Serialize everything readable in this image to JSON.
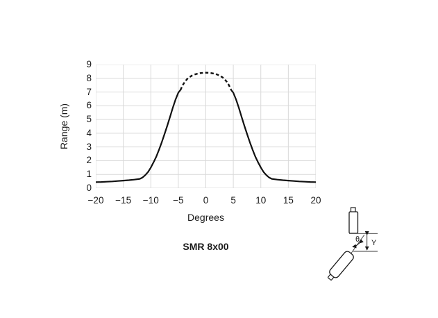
{
  "chart_data": {
    "type": "line",
    "title": "SMR 8x00",
    "xlabel": "Degrees",
    "ylabel": "Range (m)",
    "xlim": [
      -20,
      20
    ],
    "ylim": [
      0,
      9
    ],
    "xticks": [
      -20,
      -15,
      -10,
      -5,
      0,
      5,
      10,
      15,
      20
    ],
    "yticks": [
      0,
      1,
      2,
      3,
      4,
      5,
      6,
      7,
      8,
      9
    ],
    "grid": true,
    "legend": false,
    "line_color": "#111111",
    "grid_color": "#d9d9d9",
    "series": [
      {
        "name": "range-curve-left-solid",
        "style": "solid",
        "points": [
          [
            -20,
            0.44
          ],
          [
            -19,
            0.45
          ],
          [
            -18,
            0.47
          ],
          [
            -17,
            0.49
          ],
          [
            -16,
            0.52
          ],
          [
            -15,
            0.55
          ],
          [
            -14,
            0.58
          ],
          [
            -13,
            0.62
          ],
          [
            -12,
            0.68
          ],
          [
            -11.5,
            0.78
          ],
          [
            -11,
            0.95
          ],
          [
            -10.5,
            1.18
          ],
          [
            -10,
            1.5
          ],
          [
            -9.5,
            1.88
          ],
          [
            -9,
            2.3
          ],
          [
            -8.5,
            2.8
          ],
          [
            -8,
            3.35
          ],
          [
            -7.5,
            3.95
          ],
          [
            -7,
            4.55
          ],
          [
            -6.5,
            5.2
          ],
          [
            -6,
            5.85
          ],
          [
            -5.5,
            6.45
          ],
          [
            -5,
            6.95
          ],
          [
            -4.6,
            7.15
          ]
        ]
      },
      {
        "name": "range-curve-peak-dashed",
        "style": "dashed",
        "points": [
          [
            -4.6,
            7.15
          ],
          [
            -4.2,
            7.5
          ],
          [
            -3.8,
            7.75
          ],
          [
            -3.4,
            7.95
          ],
          [
            -3,
            8.08
          ],
          [
            -2.5,
            8.2
          ],
          [
            -2,
            8.28
          ],
          [
            -1.5,
            8.34
          ],
          [
            -1,
            8.38
          ],
          [
            -0.5,
            8.4
          ],
          [
            0,
            8.41
          ],
          [
            0.5,
            8.4
          ],
          [
            1,
            8.38
          ],
          [
            1.5,
            8.34
          ],
          [
            2,
            8.28
          ],
          [
            2.5,
            8.2
          ],
          [
            3,
            8.08
          ],
          [
            3.4,
            7.95
          ],
          [
            3.8,
            7.75
          ],
          [
            4.2,
            7.5
          ],
          [
            4.6,
            7.15
          ]
        ]
      },
      {
        "name": "range-curve-right-solid",
        "style": "solid",
        "points": [
          [
            4.6,
            7.15
          ],
          [
            5,
            6.95
          ],
          [
            5.5,
            6.45
          ],
          [
            6,
            5.85
          ],
          [
            6.5,
            5.2
          ],
          [
            7,
            4.55
          ],
          [
            7.5,
            3.95
          ],
          [
            8,
            3.35
          ],
          [
            8.5,
            2.8
          ],
          [
            9,
            2.3
          ],
          [
            9.5,
            1.88
          ],
          [
            10,
            1.5
          ],
          [
            10.5,
            1.18
          ],
          [
            11,
            0.95
          ],
          [
            11.5,
            0.78
          ],
          [
            12,
            0.68
          ],
          [
            13,
            0.62
          ],
          [
            14,
            0.58
          ],
          [
            15,
            0.55
          ],
          [
            16,
            0.52
          ],
          [
            17,
            0.49
          ],
          [
            18,
            0.47
          ],
          [
            19,
            0.45
          ],
          [
            20,
            0.44
          ]
        ]
      }
    ]
  },
  "diagram": {
    "name": "sensor-orientation",
    "theta_label": "θ",
    "y_label": "Y",
    "stroke_color": "#1a1a1a",
    "dim_line_color": "#3a3a3a"
  }
}
